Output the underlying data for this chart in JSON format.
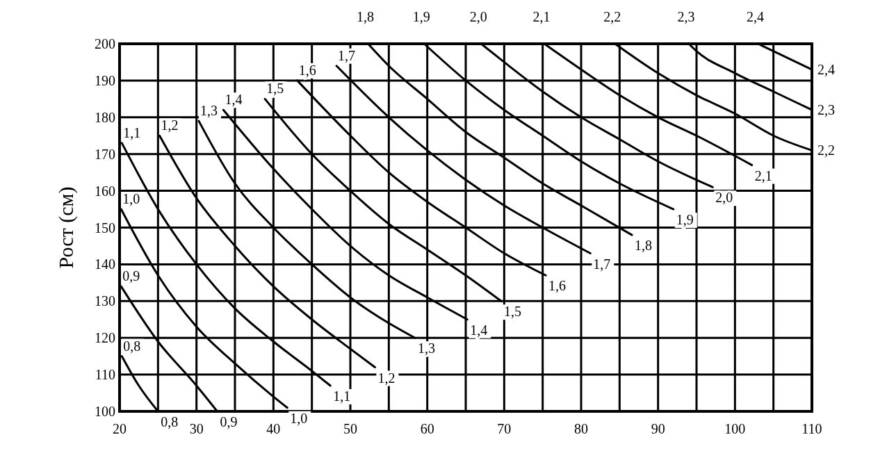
{
  "chart_data": {
    "type": "line",
    "ylabel": "Рост (см)",
    "xlim": [
      20,
      110
    ],
    "ylim": [
      100,
      200
    ],
    "xticks": [
      20,
      {
        "value": 25,
        "label": null
      },
      30,
      {
        "value": 35,
        "label": null
      },
      40,
      {
        "value": 45,
        "label": null
      },
      50,
      {
        "value": 55,
        "label": null
      },
      60,
      {
        "value": 65,
        "label": null
      },
      70,
      {
        "value": 75,
        "label": null
      },
      80,
      {
        "value": 85,
        "label": null
      },
      90,
      {
        "value": 95,
        "label": null
      },
      100,
      {
        "value": 105,
        "label": null
      },
      110
    ],
    "yticks": [
      100,
      110,
      120,
      130,
      140,
      150,
      160,
      170,
      180,
      190,
      200
    ],
    "grid": true,
    "marker": "none",
    "line_style": "solid",
    "series": [
      {
        "name": "0,8",
        "color": "#000000",
        "x": [
          20.3,
          22.5,
          25
        ],
        "values": [
          115,
          107,
          100
        ]
      },
      {
        "name": "0,9",
        "color": "#000000",
        "x": [
          20.2,
          25,
          30,
          32.7
        ],
        "values": [
          134,
          119,
          107,
          100
        ]
      },
      {
        "name": "1,0",
        "color": "#000000",
        "x": [
          20.2,
          25,
          30,
          35,
          40,
          41.8
        ],
        "values": [
          155,
          137,
          123,
          113,
          104,
          101
        ]
      },
      {
        "name": "1,1",
        "color": "#000000",
        "x": [
          20.3,
          25,
          30,
          35,
          40,
          45,
          47.4
        ],
        "values": [
          173,
          155,
          140,
          128,
          119,
          111,
          107
        ]
      },
      {
        "name": "1,2",
        "color": "#000000",
        "x": [
          25.2,
          30,
          35,
          40,
          45,
          50,
          53.2
        ],
        "values": [
          175,
          158,
          145,
          134,
          125,
          117,
          112
        ]
      },
      {
        "name": "1,3",
        "color": "#000000",
        "x": [
          30.3,
          35,
          40,
          45,
          50,
          55,
          58.4
        ],
        "values": [
          179,
          162,
          150,
          140,
          131,
          124,
          120
        ]
      },
      {
        "name": "1,4",
        "color": "#000000",
        "x": [
          33.5,
          40,
          45,
          50,
          55,
          60,
          65.2
        ],
        "values": [
          182,
          166,
          155,
          145,
          137,
          131,
          125
        ]
      },
      {
        "name": "1,5",
        "color": "#000000",
        "x": [
          38.9,
          45,
          50,
          55,
          60,
          65,
          69.6
        ],
        "values": [
          185,
          170,
          160,
          151,
          144,
          137,
          130
        ]
      },
      {
        "name": "1,6",
        "color": "#000000",
        "x": [
          43.1,
          50,
          55,
          60,
          65,
          70,
          75.4
        ],
        "values": [
          190,
          175,
          165,
          157,
          150,
          143,
          137
        ]
      },
      {
        "name": "1,7",
        "color": "#000000",
        "x": [
          48.2,
          55,
          60,
          65,
          70,
          75,
          81.2
        ],
        "values": [
          194,
          180,
          171,
          163,
          156,
          150,
          143
        ]
      },
      {
        "name": "1,8",
        "color": "#000000",
        "x": [
          52.3,
          55,
          60,
          65,
          70,
          75,
          80,
          86.6
        ],
        "values": [
          200,
          194,
          185,
          176,
          169,
          162,
          156,
          148
        ]
      },
      {
        "name": "1,9",
        "color": "#000000",
        "x": [
          59.6,
          65,
          70,
          75,
          80,
          85,
          92
        ],
        "values": [
          200,
          190,
          182,
          175,
          168,
          162,
          155
        ]
      },
      {
        "name": "2,0",
        "color": "#000000",
        "x": [
          67,
          70,
          75,
          80,
          85,
          90,
          97.1
        ],
        "values": [
          200,
          195,
          187,
          180,
          174,
          168,
          161
        ]
      },
      {
        "name": "2,1",
        "color": "#000000",
        "x": [
          75.2,
          80,
          85,
          90,
          95,
          102.2
        ],
        "values": [
          200,
          193,
          186,
          180,
          175,
          167
        ]
      },
      {
        "name": "2,2",
        "color": "#000000",
        "x": [
          84.4,
          90,
          95,
          100,
          105,
          110
        ],
        "values": [
          200,
          192,
          186,
          181,
          175,
          171
        ]
      },
      {
        "name": "2,3",
        "color": "#000000",
        "x": [
          94,
          95,
          100,
          105,
          110
        ],
        "values": [
          200,
          198,
          192,
          187,
          182
        ]
      },
      {
        "name": "2,4",
        "color": "#000000",
        "x": [
          103,
          105,
          110
        ],
        "values": [
          200,
          198,
          193
        ]
      }
    ]
  }
}
